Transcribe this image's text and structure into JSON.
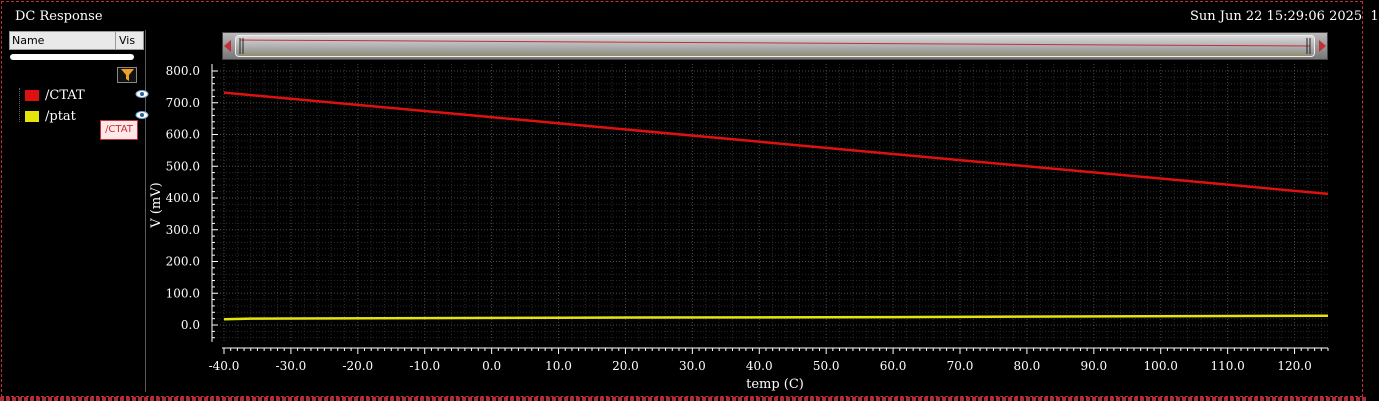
{
  "window": {
    "title": "DC Response",
    "timestamp": "Sun Jun 22 15:29:06 2025  1"
  },
  "legend": {
    "header_name": "Name",
    "header_vis": "Vis",
    "items": [
      {
        "name": "/CTAT",
        "color": "#dd1111"
      },
      {
        "name": "/ptat",
        "color": "#e4e40c"
      }
    ],
    "tooltip": "/CTAT"
  },
  "chart_data": {
    "type": "line",
    "xlabel": "temp (C)",
    "ylabel": "V (mV)",
    "xlim": [
      -40,
      125
    ],
    "ylim": [
      -50,
      800
    ],
    "x_ticks": [
      "-40.0",
      "-30.0",
      "-20.0",
      "-10.0",
      "0.0",
      "10.0",
      "20.0",
      "30.0",
      "40.0",
      "50.0",
      "60.0",
      "70.0",
      "80.0",
      "90.0",
      "100.0",
      "110.0",
      "120.0"
    ],
    "y_ticks": [
      "0.0",
      "100.0",
      "200.0",
      "300.0",
      "400.0",
      "500.0",
      "600.0",
      "700.0",
      "800.0"
    ],
    "grid": true,
    "series": [
      {
        "name": "/CTAT",
        "color": "#dd1111",
        "x": [
          -40,
          125
        ],
        "y": [
          732,
          413
        ]
      },
      {
        "name": "/ptat",
        "color": "#e4e40c",
        "x": [
          -40,
          -36,
          10,
          58,
          104,
          125
        ],
        "y": [
          18,
          20,
          23,
          25,
          28,
          29
        ]
      }
    ]
  }
}
